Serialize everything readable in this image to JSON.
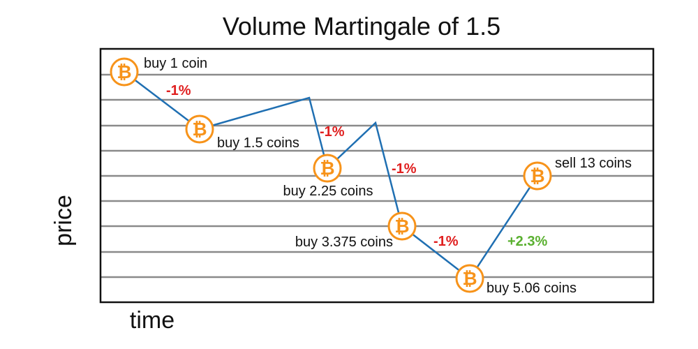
{
  "title": "Volume Martingale of 1.5",
  "axis": {
    "x_label": "time",
    "y_label": "price"
  },
  "colors": {
    "line": "#1f6fb2",
    "coin": "#f7931a",
    "loss": "#e02020",
    "gain": "#5ab030",
    "grid": "#8a8a8a",
    "frame": "#111111"
  },
  "coin_icon": "bitcoin-icon",
  "coin_symbol": "₿",
  "steps": [
    {
      "label": "buy 1 coin"
    },
    {
      "label": "buy 1.5 coins"
    },
    {
      "label": "buy 2.25 coins"
    },
    {
      "label": "buy 3.375 coins"
    },
    {
      "label": "buy 5.06 coins"
    },
    {
      "label": "sell 13 coins"
    }
  ],
  "changes": [
    {
      "text": "-1%",
      "kind": "loss"
    },
    {
      "text": "-1%",
      "kind": "loss"
    },
    {
      "text": "-1%",
      "kind": "loss"
    },
    {
      "text": "-1%",
      "kind": "loss"
    },
    {
      "text": "+2.3%",
      "kind": "gain"
    }
  ]
}
